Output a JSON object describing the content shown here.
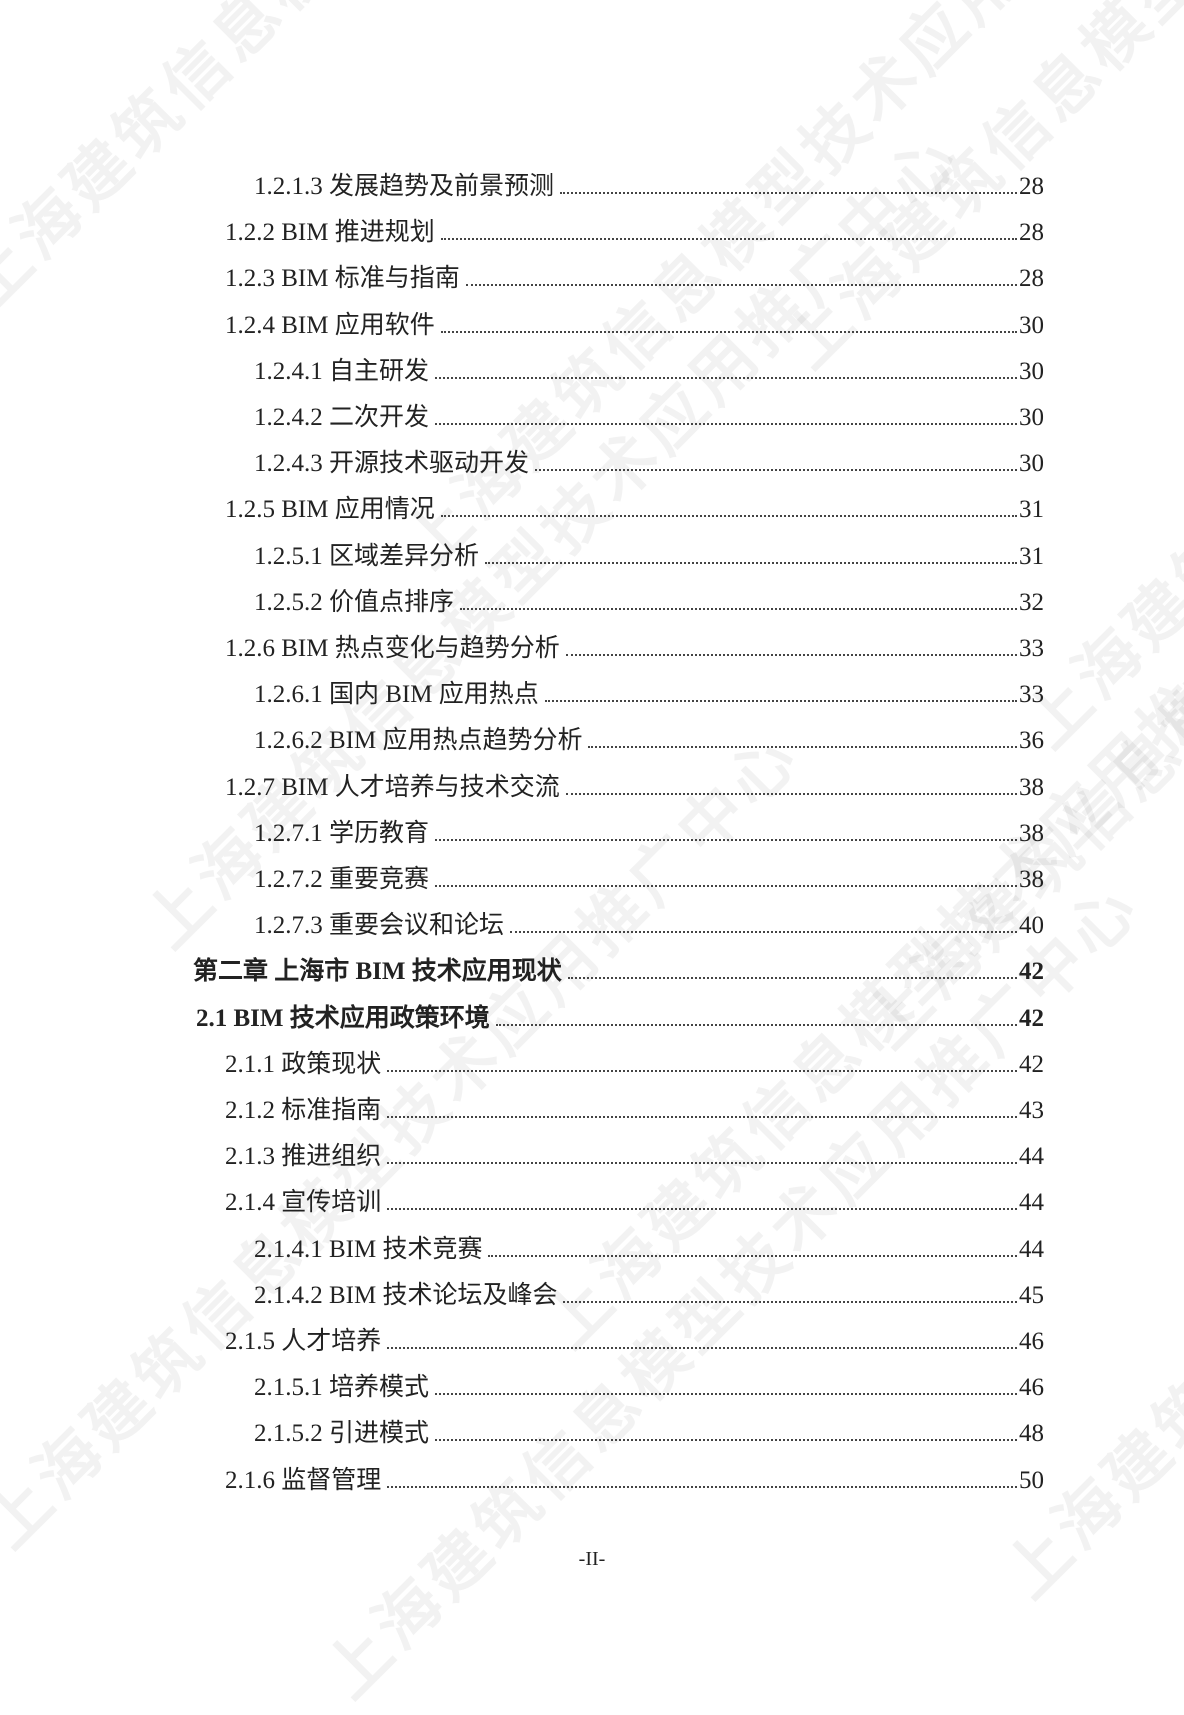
{
  "watermark": "上海建筑信息模型技术应用推广中心",
  "toc": [
    {
      "label": "1.2.1.3  发展趋势及前景预测",
      "page": "28",
      "level": 3
    },
    {
      "label": "1.2.2 BIM 推进规划",
      "page": "28",
      "level": 2
    },
    {
      "label": "1.2.3 BIM 标准与指南",
      "page": "28",
      "level": 2
    },
    {
      "label": "1.2.4 BIM 应用软件",
      "page": "30",
      "level": 2
    },
    {
      "label": "1.2.4.1  自主研发",
      "page": "30",
      "level": 3
    },
    {
      "label": "1.2.4.2  二次开发",
      "page": "30",
      "level": 3
    },
    {
      "label": "1.2.4.3  开源技术驱动开发",
      "page": "30",
      "level": 3
    },
    {
      "label": "1.2.5 BIM 应用情况",
      "page": "31",
      "level": 2
    },
    {
      "label": "1.2.5.1  区域差异分析",
      "page": "31",
      "level": 3
    },
    {
      "label": "1.2.5.2  价值点排序",
      "page": "32",
      "level": 3
    },
    {
      "label": "1.2.6 BIM 热点变化与趋势分析",
      "page": "33",
      "level": 2
    },
    {
      "label": "1.2.6.1  国内 BIM 应用热点",
      "page": "33",
      "level": 3
    },
    {
      "label": "1.2.6.2 BIM 应用热点趋势分析",
      "page": "36",
      "level": 3
    },
    {
      "label": "1.2.7 BIM 人才培养与技术交流",
      "page": "38",
      "level": 2
    },
    {
      "label": "1.2.7.1  学历教育",
      "page": "38",
      "level": 3
    },
    {
      "label": "1.2.7.2  重要竞赛",
      "page": "38",
      "level": 3
    },
    {
      "label": "1.2.7.3  重要会议和论坛",
      "page": "40",
      "level": 3
    },
    {
      "label": "第二章  上海市 BIM 技术应用现状",
      "page": "42",
      "level": 0
    },
    {
      "label": "2.1 BIM 技术应用政策环境",
      "page": "42",
      "level": 1
    },
    {
      "label": "2.1.1  政策现状",
      "page": "42",
      "level": 2
    },
    {
      "label": "2.1.2  标准指南",
      "page": "43",
      "level": 2
    },
    {
      "label": "2.1.3  推进组织",
      "page": "44",
      "level": 2
    },
    {
      "label": "2.1.4  宣传培训",
      "page": "44",
      "level": 2
    },
    {
      "label": "2.1.4.1 BIM 技术竞赛",
      "page": "44",
      "level": 3
    },
    {
      "label": "2.1.4.2 BIM 技术论坛及峰会",
      "page": "45",
      "level": 3
    },
    {
      "label": "2.1.5  人才培养",
      "page": "46",
      "level": 2
    },
    {
      "label": "2.1.5.1  培养模式",
      "page": "46",
      "level": 3
    },
    {
      "label": "2.1.5.2  引进模式",
      "page": "48",
      "level": 3
    },
    {
      "label": "2.1.6  监督管理",
      "page": "50",
      "level": 2
    }
  ],
  "footer": {
    "page_number": "-II-"
  }
}
